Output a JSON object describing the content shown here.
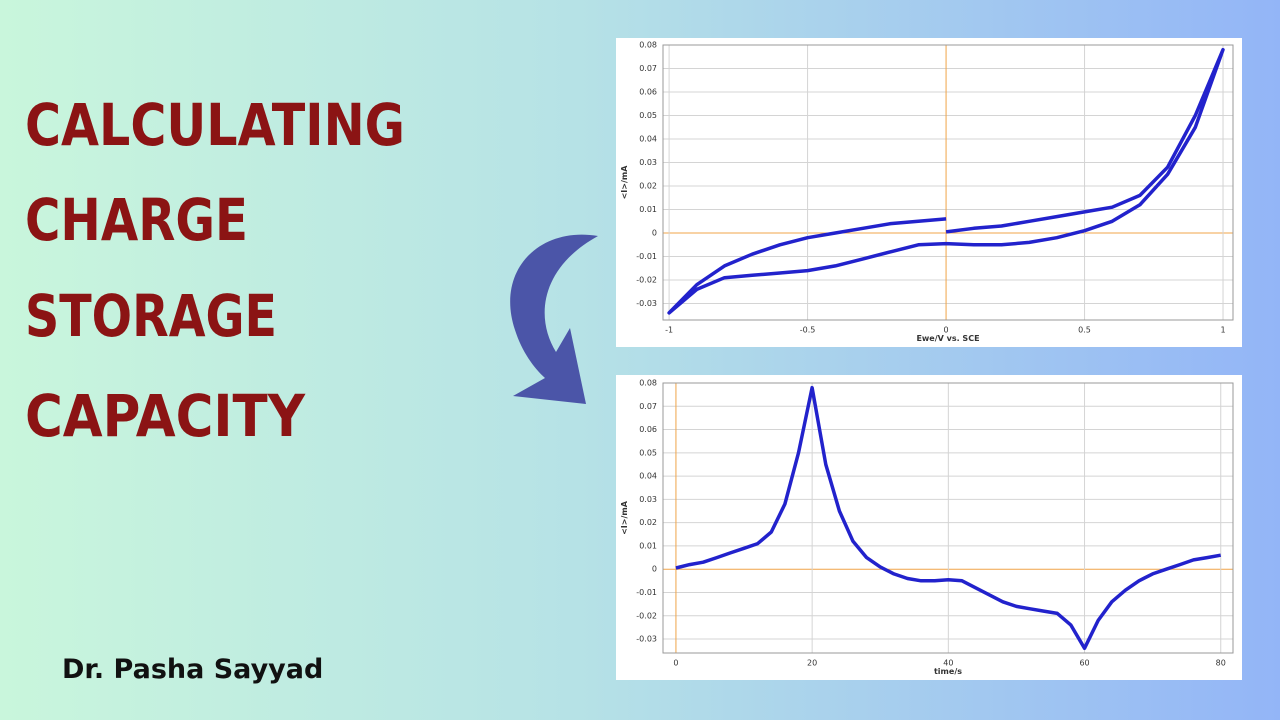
{
  "headline": [
    "CALCULATING",
    "CHARGE",
    "STORAGE",
    "CAPACITY"
  ],
  "author": "Dr. Pasha Sayyad",
  "chart_data": [
    {
      "type": "line",
      "x_label": "Ewe/V vs. SCE",
      "y_label": "<I>/mA",
      "color": "#2222cc",
      "zero_line_color": "#f0a448",
      "grid": true,
      "x": [
        0,
        0.1,
        0.2,
        0.3,
        0.4,
        0.5,
        0.6,
        0.7,
        0.8,
        0.9,
        1,
        0.9,
        0.8,
        0.7,
        0.6,
        0.5,
        0.4,
        0.3,
        0.2,
        0.1,
        0,
        -0.1,
        -0.2,
        -0.3,
        -0.4,
        -0.5,
        -0.6,
        -0.7,
        -0.8,
        -0.9,
        -1,
        -0.9,
        -0.8,
        -0.7,
        -0.6,
        -0.5,
        -0.4,
        -0.3,
        -0.2,
        -0.1,
        0
      ],
      "values": [
        0.0005,
        0.002,
        0.003,
        0.005,
        0.007,
        0.009,
        0.011,
        0.016,
        0.028,
        0.05,
        0.078,
        0.045,
        0.025,
        0.012,
        0.005,
        0.001,
        -0.002,
        -0.004,
        -0.005,
        -0.005,
        -0.0045,
        -0.005,
        -0.008,
        -0.011,
        -0.014,
        -0.016,
        -0.017,
        -0.018,
        -0.019,
        -0.024,
        -0.034,
        -0.022,
        -0.014,
        -0.009,
        -0.005,
        -0.002,
        0,
        0.002,
        0.004,
        0.005,
        0.006
      ],
      "xlim": [
        -1.022,
        1.036
      ],
      "ylim": [
        -0.037,
        0.08
      ],
      "xticks": [
        -1,
        -0.5,
        0,
        0.5,
        1
      ],
      "yticks": [
        0.08,
        0.07,
        0.06,
        0.05,
        0.04,
        0.03,
        0.02,
        0.01,
        0,
        -0.01,
        -0.02,
        -0.03
      ]
    },
    {
      "type": "line",
      "x_label": "time/s",
      "y_label": "<I>/mA",
      "color": "#2222cc",
      "zero_line_color": "#f0a448",
      "grid": true,
      "x": [
        0,
        2,
        4,
        6,
        8,
        10,
        12,
        14,
        16,
        18,
        20,
        22,
        24,
        26,
        28,
        30,
        32,
        34,
        36,
        38,
        40,
        42,
        44,
        46,
        48,
        50,
        52,
        54,
        56,
        58,
        60,
        62,
        64,
        66,
        68,
        70,
        72,
        74,
        76,
        78,
        80
      ],
      "values": [
        0.0005,
        0.002,
        0.003,
        0.005,
        0.007,
        0.009,
        0.011,
        0.016,
        0.028,
        0.05,
        0.078,
        0.045,
        0.025,
        0.012,
        0.005,
        0.001,
        -0.002,
        -0.004,
        -0.005,
        -0.005,
        -0.0045,
        -0.005,
        -0.008,
        -0.011,
        -0.014,
        -0.016,
        -0.017,
        -0.018,
        -0.019,
        -0.024,
        -0.034,
        -0.022,
        -0.014,
        -0.009,
        -0.005,
        -0.002,
        0,
        0.002,
        0.004,
        0.005,
        0.006
      ],
      "xlim": [
        -1.9,
        81.8
      ],
      "ylim": [
        -0.036,
        0.08
      ],
      "xticks": [
        0,
        20,
        40,
        60,
        80
      ],
      "yticks": [
        0.08,
        0.07,
        0.06,
        0.05,
        0.04,
        0.03,
        0.02,
        0.01,
        0,
        -0.01,
        -0.02,
        -0.03
      ]
    }
  ]
}
